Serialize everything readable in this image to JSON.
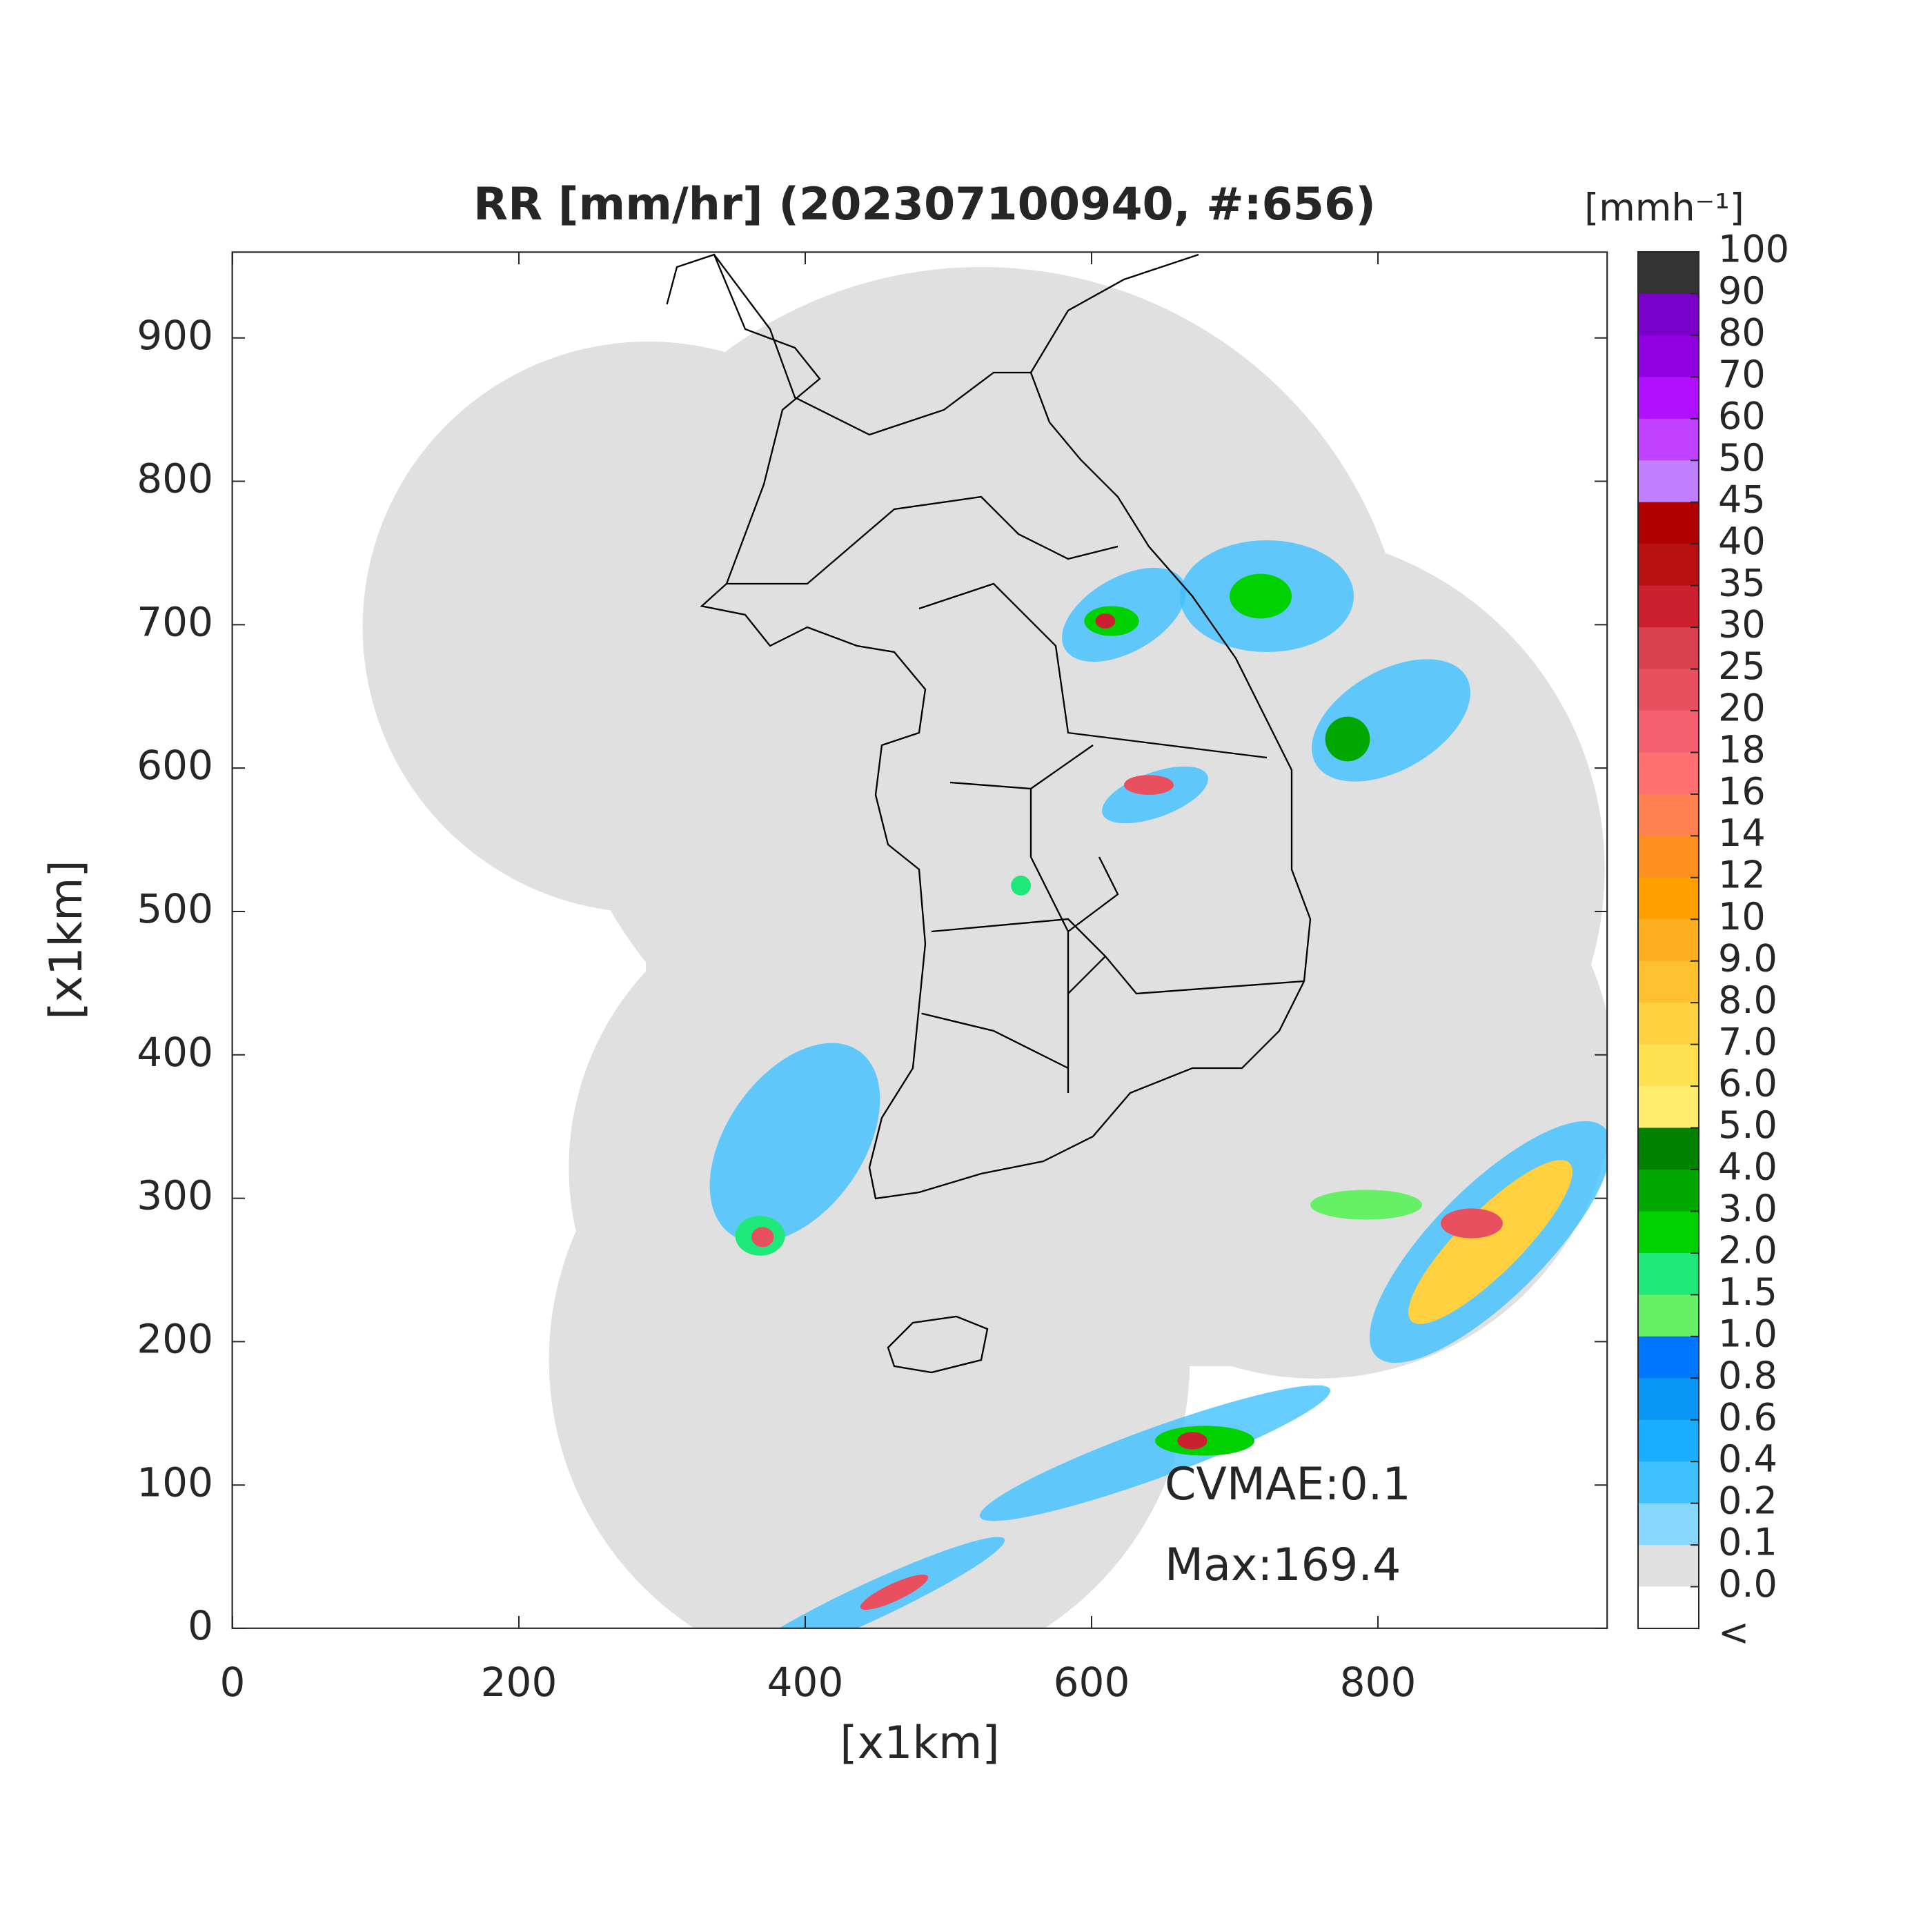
{
  "chart_data": {
    "type": "map",
    "title": "RR [mm/hr] (202307100940, #:656)",
    "xlabel": "[x1km]",
    "ylabel": "[x1km]",
    "xlim": [
      0,
      960
    ],
    "ylim": [
      0,
      960
    ],
    "xticks": [
      0,
      200,
      400,
      600,
      800
    ],
    "yticks": [
      0,
      100,
      200,
      300,
      400,
      500,
      600,
      700,
      800,
      900
    ],
    "annotations": [
      "CVMAE:0.1",
      "Max:169.4"
    ],
    "colorbar": {
      "label": "[mmh⁻¹]",
      "ticks": [
        100,
        90,
        80,
        70,
        60,
        50,
        45,
        40,
        35,
        30,
        25,
        20,
        18,
        16,
        14,
        12,
        10,
        {
          "value": 9,
          "label": "9.0"
        },
        {
          "value": 8,
          "label": "8.0"
        },
        {
          "value": 7,
          "label": "7.0"
        },
        {
          "value": 6,
          "label": "6.0"
        },
        {
          "value": 5,
          "label": "5.0"
        },
        {
          "value": 4,
          "label": "4.0"
        },
        {
          "value": 3,
          "label": "3.0"
        },
        {
          "value": 2,
          "label": "2.0"
        },
        1.5,
        {
          "value": 1,
          "label": "1.0"
        },
        0.8,
        0.6,
        0.4,
        0.2,
        0.1,
        {
          "value": 0,
          "label": "0.0"
        }
      ],
      "under_label": "<",
      "colors": [
        "#333333",
        "#7800c8",
        "#9000e0",
        "#b010ff",
        "#c040ff",
        "#c080ff",
        "#b00000",
        "#b81010",
        "#cc2030",
        "#d94050",
        "#e85060",
        "#f56070",
        "#ff7070",
        "#ff8050",
        "#ff9020",
        "#ffa000",
        "#ffb020",
        "#ffc030",
        "#ffd040",
        "#ffe050",
        "#ffee6e",
        "#008200",
        "#00a800",
        "#00d200",
        "#1ee878",
        "#66f066",
        "#0077ff",
        "#0a96f5",
        "#19aeff",
        "#3fc1ff",
        "#87d7ff",
        "#e0e0e0",
        "#ffffff"
      ]
    }
  }
}
